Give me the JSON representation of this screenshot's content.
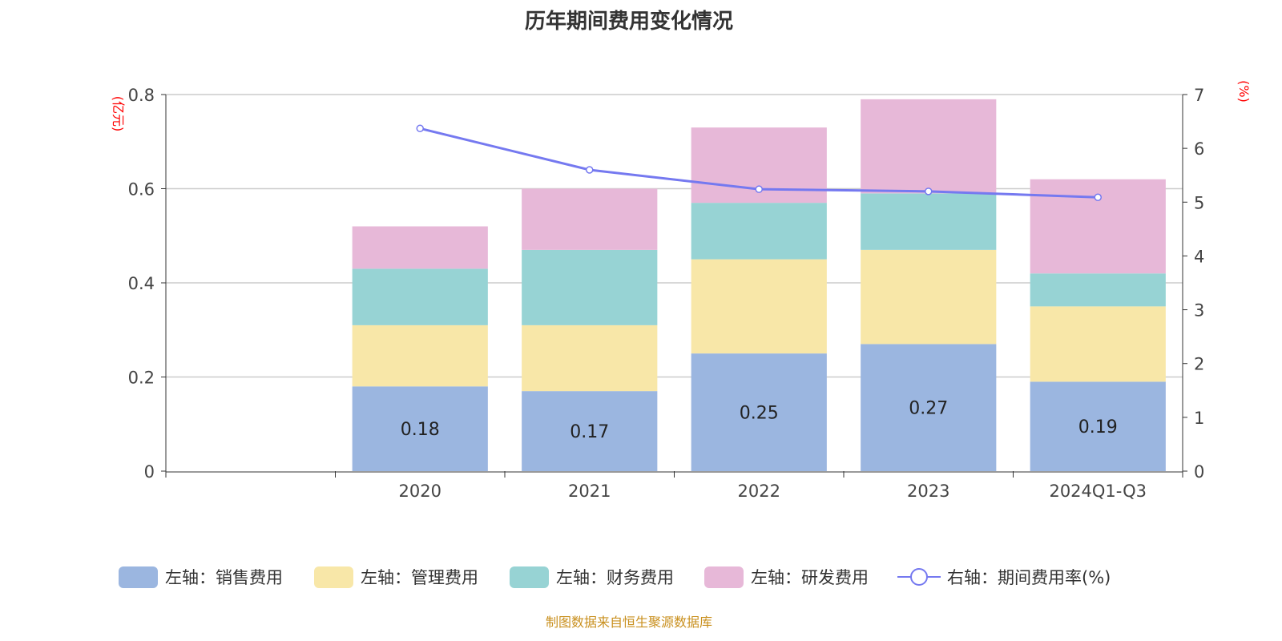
{
  "chart_data": {
    "type": "bar",
    "title": "历年期间费用变化情况",
    "source": "制图数据来自恒生聚源数据库",
    "categories": [
      "",
      "2020",
      "2021",
      "2022",
      "2023",
      "2024Q1-Q3"
    ],
    "left_axis": {
      "label": "(亿元)",
      "ylim": [
        0,
        0.8
      ],
      "ticks": [
        "0",
        "0.2",
        "0.4",
        "0.6",
        "0.8"
      ]
    },
    "right_axis": {
      "label": "(%)",
      "ylim": [
        0,
        7
      ],
      "ticks": [
        "0",
        "1",
        "2",
        "3",
        "4",
        "5",
        "6",
        "7"
      ]
    },
    "grid": true,
    "legend_position": "bottom",
    "series": [
      {
        "name": "左轴：销售费用",
        "type": "bar",
        "color": "#9bb6e0",
        "values": [
          null,
          0.18,
          0.17,
          0.25,
          0.27,
          0.19
        ],
        "labels": [
          "",
          "0.18",
          "0.17",
          "0.25",
          "0.27",
          "0.19"
        ]
      },
      {
        "name": "左轴：管理费用",
        "type": "bar",
        "color": "#f8e7a8",
        "values": [
          null,
          0.13,
          0.14,
          0.2,
          0.2,
          0.16
        ]
      },
      {
        "name": "左轴：财务费用",
        "type": "bar",
        "color": "#97d3d4",
        "values": [
          null,
          0.12,
          0.16,
          0.12,
          0.12,
          0.07
        ]
      },
      {
        "name": "左轴：研发费用",
        "type": "bar",
        "color": "#e7b8d8",
        "values": [
          null,
          0.09,
          0.13,
          0.16,
          0.2,
          0.2
        ]
      },
      {
        "name": "右轴：期间费用率(%)",
        "type": "line",
        "color": "#7579f0",
        "values": [
          null,
          6.37,
          5.6,
          5.24,
          5.2,
          5.09
        ]
      }
    ]
  }
}
